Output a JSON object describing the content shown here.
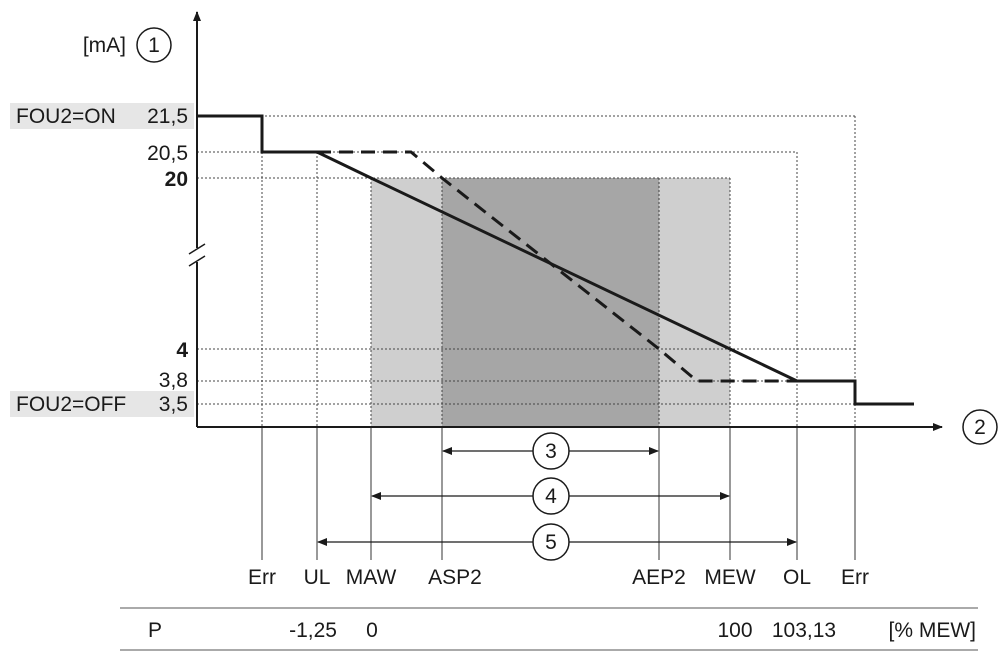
{
  "y_axis": {
    "unit": "[mA]",
    "marker": "1",
    "labels": {
      "fou2_on": "FOU2=ON",
      "v21_5": "21,5",
      "v20_5": "20,5",
      "v20": "20",
      "v4": "4",
      "v3_8": "3,8",
      "fou2_off": "FOU2=OFF",
      "v3_5": "3,5"
    }
  },
  "x_axis": {
    "marker": "2",
    "labels": {
      "err_left": "Err",
      "ul": "UL",
      "maw": "MAW",
      "asp2": "ASP2",
      "aep2": "AEP2",
      "mew": "MEW",
      "ol": "OL",
      "err_right": "Err"
    }
  },
  "ranges": {
    "r3": "3",
    "r4": "4",
    "r5": "5"
  },
  "p_row": {
    "label": "P",
    "ul_value": "-1,25",
    "maw_value": "0",
    "mew_value": "100",
    "ol_value": "103,13",
    "unit": "[% MEW]"
  },
  "colors": {
    "outer_band": "#cfcfcf",
    "inner_band": "#a6a6a6",
    "label_highlight": "#e6e6e6",
    "line": "#1a1a1a"
  }
}
